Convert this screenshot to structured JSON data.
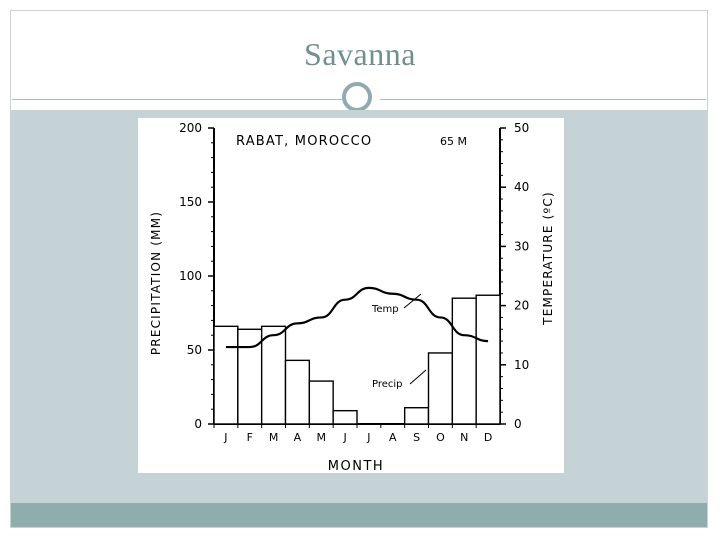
{
  "slide": {
    "title": "Savanna"
  },
  "chart_data": {
    "type": "bar",
    "title": "RABAT, MOROCCO",
    "subtitle": "65 M",
    "xlabel": "MONTH",
    "ylabel": "PRECIPITATION (MM)",
    "y2label": "TEMPERATURE (ºC)",
    "categories": [
      "J",
      "F",
      "M",
      "A",
      "M",
      "J",
      "J",
      "A",
      "S",
      "O",
      "N",
      "D"
    ],
    "ylim": [
      0,
      200
    ],
    "y2lim": [
      0,
      50
    ],
    "yticks": [
      "0",
      "50",
      "100",
      "150",
      "200"
    ],
    "y2ticks": [
      "0",
      "10",
      "20",
      "30",
      "40",
      "50"
    ],
    "series": [
      {
        "name": "Precip",
        "kind": "bar",
        "axis": "left",
        "values": [
          66,
          64,
          66,
          43,
          29,
          9,
          0,
          0,
          11,
          48,
          85,
          87
        ]
      },
      {
        "name": "Temp",
        "kind": "line",
        "axis": "right",
        "values": [
          13,
          13,
          15,
          17,
          18,
          21,
          23,
          22,
          21,
          18,
          15,
          14
        ]
      }
    ]
  }
}
